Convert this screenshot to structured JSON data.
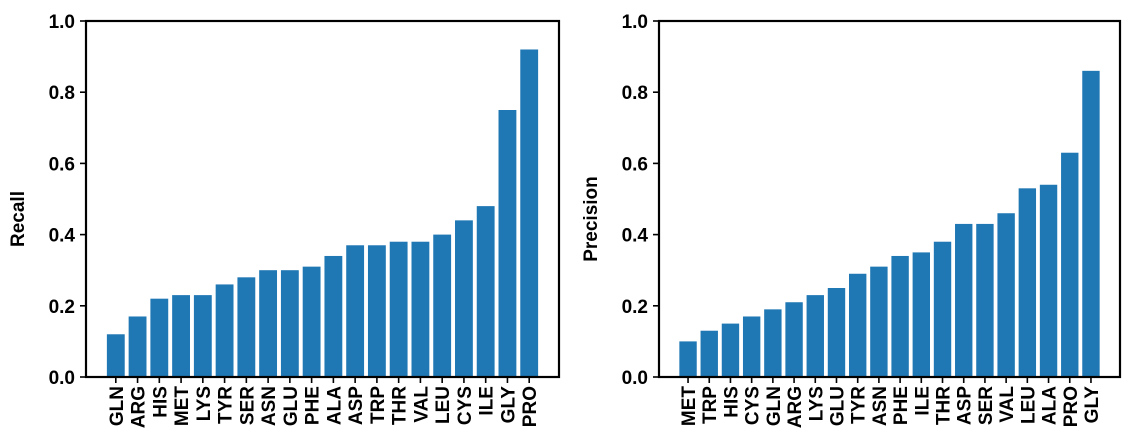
{
  "chart_data": [
    {
      "type": "bar",
      "title": "",
      "xlabel": "",
      "ylabel": "Recall",
      "ylim": [
        0,
        1.0
      ],
      "yticks": [
        "0.0",
        "0.2",
        "0.4",
        "0.6",
        "0.8",
        "1.0"
      ],
      "grid": false,
      "bar_color": "#1f77b4",
      "categories": [
        "GLN",
        "ARG",
        "HIS",
        "MET",
        "LYS",
        "TYR",
        "SER",
        "ASN",
        "GLU",
        "PHE",
        "ALA",
        "ASP",
        "TRP",
        "THR",
        "VAL",
        "LEU",
        "CYS",
        "ILE",
        "GLY",
        "PRO"
      ],
      "values": [
        0.12,
        0.17,
        0.22,
        0.23,
        0.23,
        0.26,
        0.28,
        0.3,
        0.3,
        0.31,
        0.34,
        0.37,
        0.37,
        0.38,
        0.38,
        0.4,
        0.44,
        0.48,
        0.75,
        0.92
      ]
    },
    {
      "type": "bar",
      "title": "",
      "xlabel": "",
      "ylabel": "Precision",
      "ylim": [
        0,
        1.0
      ],
      "yticks": [
        "0.0",
        "0.2",
        "0.4",
        "0.6",
        "0.8",
        "1.0"
      ],
      "grid": false,
      "bar_color": "#1f77b4",
      "categories": [
        "MET",
        "TRP",
        "HIS",
        "CYS",
        "GLN",
        "ARG",
        "LYS",
        "GLU",
        "TYR",
        "ASN",
        "PHE",
        "ILE",
        "THR",
        "ASP",
        "SER",
        "VAL",
        "LEU",
        "ALA",
        "PRO",
        "GLY"
      ],
      "values": [
        0.1,
        0.13,
        0.15,
        0.17,
        0.19,
        0.21,
        0.23,
        0.25,
        0.29,
        0.31,
        0.34,
        0.35,
        0.38,
        0.43,
        0.43,
        0.46,
        0.53,
        0.54,
        0.63,
        0.86
      ]
    }
  ]
}
